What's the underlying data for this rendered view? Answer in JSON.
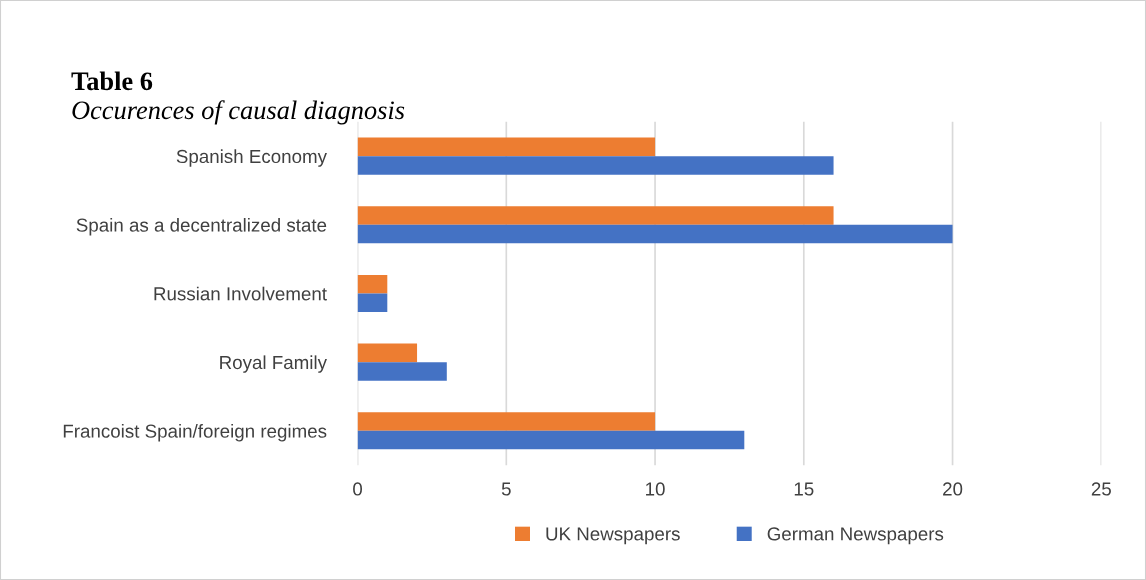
{
  "chart_data": {
    "type": "bar",
    "orientation": "horizontal",
    "title": "Table 6",
    "subtitle": "Occurences of causal diagnosis",
    "categories": [
      "Spanish Economy",
      "Spain as a decentralized state",
      "Russian Involvement",
      "Royal Family",
      "Francoist Spain/foreign regimes"
    ],
    "series": [
      {
        "name": "UK Newspapers",
        "color": "#ed7d31",
        "values": [
          10,
          16,
          1,
          2,
          10
        ]
      },
      {
        "name": "German Newspapers",
        "color": "#4472c4",
        "values": [
          16,
          20,
          1,
          3,
          13
        ]
      }
    ],
    "xlim": [
      0,
      25
    ],
    "xticks": [
      0,
      5,
      10,
      15,
      20,
      25
    ],
    "grid": "x",
    "legend": "bottom"
  }
}
